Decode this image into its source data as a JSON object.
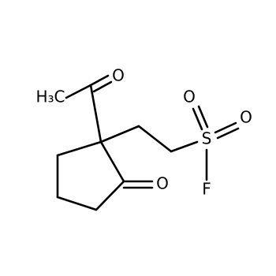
{
  "atoms": [
    {
      "label": "H₃C"
    },
    {
      "label": "O"
    },
    {
      "label": "O"
    },
    {
      "label": "S"
    },
    {
      "label": "O"
    },
    {
      "label": "O"
    },
    {
      "label": "F"
    }
  ]
}
